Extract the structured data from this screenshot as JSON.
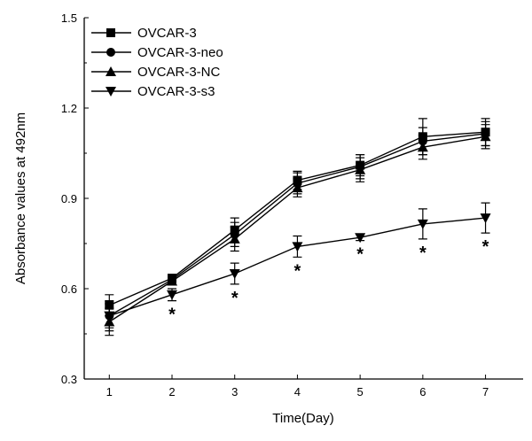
{
  "chart_data": {
    "type": "line",
    "title": "",
    "xlabel": "Time(Day)",
    "ylabel": "Absorbance values at 492nm",
    "x": [
      1,
      2,
      3,
      4,
      5,
      6,
      7
    ],
    "xlim": [
      0.6,
      7.6
    ],
    "ylim": [
      0.3,
      1.5
    ],
    "yticks": [
      0.3,
      0.6,
      0.9,
      1.2,
      1.5
    ],
    "ytick_labels": [
      "0.3",
      "0.6",
      "0.9",
      "1.2",
      "1.5"
    ],
    "xtick_labels": [
      "1",
      "2",
      "3",
      "4",
      "5",
      "6",
      "7"
    ],
    "legend_position": "top-left",
    "series": [
      {
        "name": "OVCAR-3",
        "marker": "square",
        "values": [
          0.545,
          0.635,
          0.795,
          0.96,
          1.01,
          1.105,
          1.12
        ],
        "errors": [
          0.035,
          0.01,
          0.04,
          0.03,
          0.035,
          0.06,
          0.045
        ]
      },
      {
        "name": "OVCAR-3-neo",
        "marker": "circle",
        "values": [
          0.51,
          0.63,
          0.78,
          0.95,
          1.005,
          1.09,
          1.115
        ],
        "errors": [
          0.04,
          0.01,
          0.04,
          0.035,
          0.04,
          0.045,
          0.04
        ]
      },
      {
        "name": "OVCAR-3-NC",
        "marker": "triangle-up",
        "values": [
          0.49,
          0.625,
          0.765,
          0.935,
          0.995,
          1.07,
          1.105
        ],
        "errors": [
          0.045,
          0.01,
          0.04,
          0.03,
          0.04,
          0.04,
          0.04
        ]
      },
      {
        "name": "OVCAR-3-s3",
        "marker": "triangle-down",
        "values": [
          0.51,
          0.58,
          0.65,
          0.74,
          0.77,
          0.815,
          0.835
        ],
        "errors": [
          0.05,
          0.02,
          0.035,
          0.035,
          0.01,
          0.05,
          0.05
        ]
      }
    ],
    "annotations": [
      {
        "x": 2,
        "text": "*"
      },
      {
        "x": 3,
        "text": "*"
      },
      {
        "x": 4,
        "text": "*"
      },
      {
        "x": 5,
        "text": "*"
      },
      {
        "x": 6,
        "text": "*"
      },
      {
        "x": 7,
        "text": "*"
      }
    ]
  }
}
